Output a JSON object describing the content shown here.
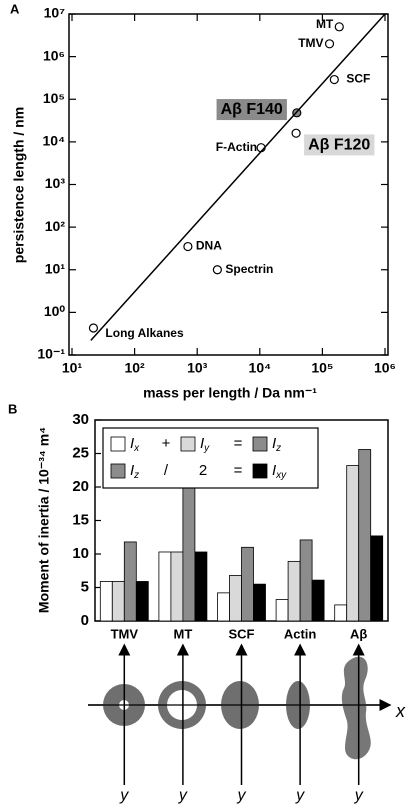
{
  "chart_data": [
    {
      "type": "scatter",
      "panel": "A",
      "xlabel": "mass per length / Da nm⁻¹",
      "ylabel": "persistence length / nm",
      "xscale": "log",
      "yscale": "log",
      "xlim": [
        10,
        1000000
      ],
      "ylim": [
        0.1,
        10000000
      ],
      "xticks": [
        {
          "value": 10,
          "label": "10¹"
        },
        {
          "value": 100,
          "label": "10²"
        },
        {
          "value": 1000,
          "label": "10³"
        },
        {
          "value": 10000,
          "label": "10⁴"
        },
        {
          "value": 100000,
          "label": "10⁵"
        },
        {
          "value": 1000000,
          "label": "10⁶"
        }
      ],
      "yticks": [
        {
          "value": 0.1,
          "label": "10⁻¹"
        },
        {
          "value": 1,
          "label": "10⁰"
        },
        {
          "value": 10,
          "label": "10¹"
        },
        {
          "value": 100,
          "label": "10²"
        },
        {
          "value": 1000,
          "label": "10³"
        },
        {
          "value": 10000,
          "label": "10⁴"
        },
        {
          "value": 100000,
          "label": "10⁵"
        },
        {
          "value": 1000000,
          "label": "10⁶"
        },
        {
          "value": 10000000,
          "label": "10⁷"
        }
      ],
      "series": [
        {
          "type": "scatter",
          "labels": [
            "Long Alkanes",
            "DNA",
            "Spectrin",
            "F-Actin",
            "Aβ F140",
            "Aβ F120",
            "MT",
            "TMV",
            "SCF"
          ],
          "x": [
            22,
            710,
            2100,
            10500,
            39000,
            38000,
            186000,
            130000,
            155000
          ],
          "values": [
            0.43,
            35,
            10,
            7300,
            48000,
            16000,
            5000000,
            2000000,
            290000
          ],
          "fills": [
            "#fff",
            "#fff",
            "#fff",
            "#fff",
            "#888",
            "#fff",
            "#fff",
            "#fff",
            "#fff"
          ],
          "label_backgrounds": [
            null,
            null,
            null,
            null,
            "#8a8a8a",
            "#d8d8d8",
            null,
            null,
            null
          ]
        },
        {
          "type": "line",
          "color": "#000",
          "x": [
            20,
            1000000
          ],
          "values": [
            0.22,
            10000000
          ]
        }
      ]
    },
    {
      "type": "bar",
      "panel": "B",
      "ylabel": "Moment of inertia / 10⁻³⁴ m⁴",
      "categories": [
        "TMV",
        "MT",
        "SCF",
        "Actin",
        "Aβ"
      ],
      "series": [
        {
          "name": "Ix",
          "color": "#ffffff",
          "values": [
            5.9,
            10.3,
            4.2,
            3.2,
            2.4
          ]
        },
        {
          "name": "Iy",
          "color": "#d9d9d9",
          "values": [
            5.9,
            10.3,
            6.8,
            8.9,
            23.2
          ]
        },
        {
          "name": "Iz",
          "color": "#8c8c8c",
          "values": [
            11.8,
            20.6,
            11.0,
            12.1,
            25.6
          ]
        },
        {
          "name": "Ixy",
          "color": "#000000",
          "values": [
            5.9,
            10.3,
            5.5,
            6.1,
            12.7
          ]
        }
      ],
      "legend_operators": [
        "+",
        "=",
        "/",
        "2",
        "="
      ],
      "legend": "upper left",
      "ylim": [
        0,
        30
      ],
      "yticks": [
        0,
        5,
        10,
        15,
        20,
        25,
        30
      ]
    }
  ],
  "diagram": {
    "x_label": "x",
    "y_labels": [
      "y",
      "y",
      "y",
      "y",
      "y"
    ]
  }
}
